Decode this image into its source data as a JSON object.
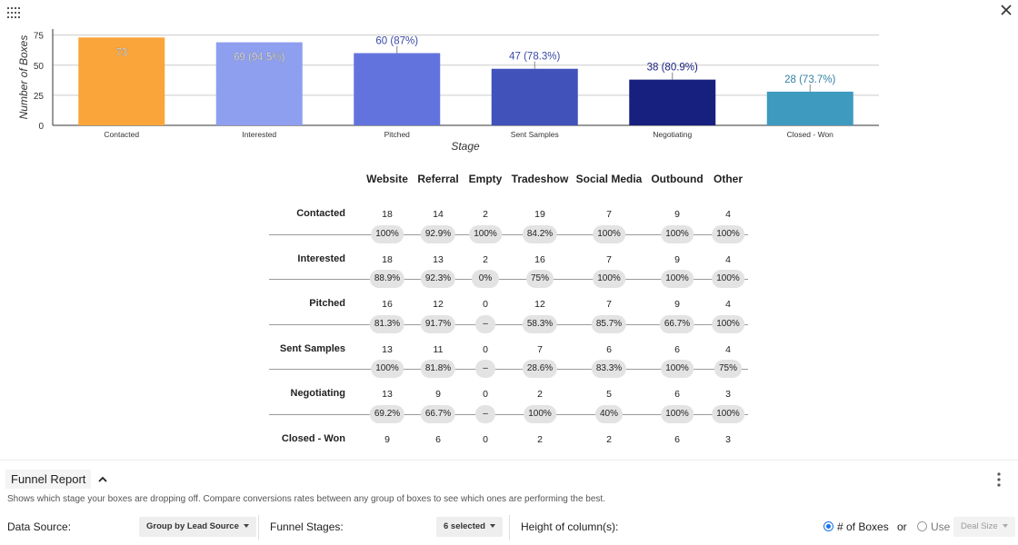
{
  "toolbar": {
    "apps_icon": "apps-grid-icon",
    "close_icon": "close-icon"
  },
  "chart_data": {
    "type": "bar",
    "title": "",
    "xlabel": "Stage",
    "ylabel": "Number of Boxes",
    "ylim": [
      0,
      80
    ],
    "yticks": [
      0,
      25,
      50,
      75
    ],
    "categories": [
      "Contacted",
      "Interested",
      "Pitched",
      "Sent Samples",
      "Negotiating",
      "Closed - Won"
    ],
    "values": [
      73,
      69,
      60,
      47,
      38,
      28
    ],
    "data_labels": [
      "73",
      "69 (94.5%)",
      "60 (87%)",
      "47 (78.3%)",
      "38 (80.9%)",
      "28 (73.7%)"
    ],
    "colors": [
      "#faa53a",
      "#8e9ff0",
      "#6373dd",
      "#4152bb",
      "#18207f",
      "#3e9abf"
    ],
    "label_colors": [
      "#ffffff",
      "#ffffff",
      "#3a4aa8",
      "#3a4aa8",
      "#18207f",
      "#3582a5"
    ],
    "grid": true
  },
  "table": {
    "columns": [
      "Website",
      "Referral",
      "Empty",
      "Tradeshow",
      "Social Media",
      "Outbound",
      "Other"
    ],
    "rows": [
      {
        "label": "Contacted",
        "values": [
          "18",
          "14",
          "2",
          "19",
          "7",
          "9",
          "4"
        ],
        "rates": [
          "100%",
          "92.9%",
          "100%",
          "84.2%",
          "100%",
          "100%",
          "100%"
        ]
      },
      {
        "label": "Interested",
        "values": [
          "18",
          "13",
          "2",
          "16",
          "7",
          "9",
          "4"
        ],
        "rates": [
          "88.9%",
          "92.3%",
          "0%",
          "75%",
          "100%",
          "100%",
          "100%"
        ]
      },
      {
        "label": "Pitched",
        "values": [
          "16",
          "12",
          "0",
          "12",
          "7",
          "9",
          "4"
        ],
        "rates": [
          "81.3%",
          "91.7%",
          "–",
          "58.3%",
          "85.7%",
          "66.7%",
          "100%"
        ]
      },
      {
        "label": "Sent Samples",
        "values": [
          "13",
          "11",
          "0",
          "7",
          "6",
          "6",
          "4"
        ],
        "rates": [
          "100%",
          "81.8%",
          "–",
          "28.6%",
          "83.3%",
          "100%",
          "75%"
        ]
      },
      {
        "label": "Negotiating",
        "values": [
          "13",
          "9",
          "0",
          "2",
          "5",
          "6",
          "3"
        ],
        "rates": [
          "69.2%",
          "66.7%",
          "–",
          "100%",
          "40%",
          "100%",
          "100%"
        ]
      },
      {
        "label": "Closed - Won",
        "values": [
          "9",
          "6",
          "0",
          "2",
          "2",
          "6",
          "3"
        ],
        "rates": []
      }
    ]
  },
  "footer": {
    "title": "Funnel Report",
    "collapse_icon": "chevron-up-icon",
    "more_icon": "more-vertical-icon",
    "description": "Shows which stage your boxes are dropping off. Compare conversions rates between any group of boxes to see which ones are performing the best.",
    "data_source_label": "Data Source:",
    "data_source_value": "Group by Lead Source",
    "stages_label": "Funnel Stages:",
    "stages_value": "6 selected",
    "height_label": "Height of column(s):",
    "option_boxes": "# of Boxes",
    "or_label": "or",
    "option_use": "Use",
    "deal_size_value": "Deal Size",
    "accent": "#1a73e8"
  }
}
